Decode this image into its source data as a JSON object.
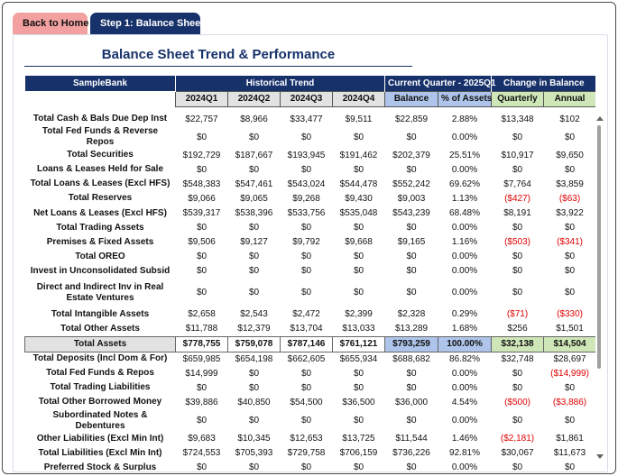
{
  "tabs": {
    "home": "Back to Home",
    "step1": "Step 1: Balance Sheet"
  },
  "title": "Balance Sheet Trend & Performance",
  "header": {
    "bank": "SampleBank",
    "historical": "Historical Trend",
    "current": "Current Quarter - 2025Q1",
    "change": "Change in Balance",
    "sub": [
      "2024Q1",
      "2024Q2",
      "2024Q3",
      "2024Q4",
      "Balance",
      "% of Assets",
      "Quarterly",
      "Annual"
    ]
  },
  "rows": [
    {
      "label": "Total Cash & Bals Due Dep Inst",
      "v": [
        "$22,757",
        "$8,966",
        "$33,477",
        "$9,511",
        "$22,859",
        "2.88%",
        "$13,348",
        "$102"
      ]
    },
    {
      "label": "Total Fed Funds & Reverse Repos",
      "v": [
        "$0",
        "$0",
        "$0",
        "$0",
        "$0",
        "0.00%",
        "$0",
        "$0"
      ]
    },
    {
      "label": "Total Securities",
      "v": [
        "$192,729",
        "$187,667",
        "$193,945",
        "$191,462",
        "$202,379",
        "25.51%",
        "$10,917",
        "$9,650"
      ]
    },
    {
      "label": "Loans & Leases Held for Sale",
      "v": [
        "$0",
        "$0",
        "$0",
        "$0",
        "$0",
        "0.00%",
        "$0",
        "$0"
      ]
    },
    {
      "label": "Total Loans & Leases (Excl HFS)",
      "v": [
        "$548,383",
        "$547,461",
        "$543,024",
        "$544,478",
        "$552,242",
        "69.62%",
        "$7,764",
        "$3,859"
      ]
    },
    {
      "label": "Total Reserves",
      "v": [
        "$9,066",
        "$9,065",
        "$9,268",
        "$9,430",
        "$9,003",
        "1.13%",
        "($427)",
        "($63)"
      ]
    },
    {
      "label": "Net Loans & Leases (Excl HFS)",
      "v": [
        "$539,317",
        "$538,396",
        "$533,756",
        "$535,048",
        "$543,239",
        "68.48%",
        "$8,191",
        "$3,922"
      ]
    },
    {
      "label": "Total Trading Assets",
      "v": [
        "$0",
        "$0",
        "$0",
        "$0",
        "$0",
        "0.00%",
        "$0",
        "$0"
      ]
    },
    {
      "label": "Premises & Fixed Assets",
      "v": [
        "$9,506",
        "$9,127",
        "$9,792",
        "$9,668",
        "$9,165",
        "1.16%",
        "($503)",
        "($341)"
      ]
    },
    {
      "label": "Total OREO",
      "v": [
        "$0",
        "$0",
        "$0",
        "$0",
        "$0",
        "0.00%",
        "$0",
        "$0"
      ]
    },
    {
      "label": "Invest in Unconsolidated Subsid",
      "v": [
        "$0",
        "$0",
        "$0",
        "$0",
        "$0",
        "0.00%",
        "$0",
        "$0"
      ]
    },
    {
      "label": "Direct and Indirect Inv in Real Estate Ventures",
      "tall": true,
      "v": [
        "$0",
        "$0",
        "$0",
        "$0",
        "$0",
        "0.00%",
        "$0",
        "$0"
      ]
    },
    {
      "label": "Total Intangible Assets",
      "v": [
        "$2,658",
        "$2,543",
        "$2,472",
        "$2,399",
        "$2,328",
        "0.29%",
        "($71)",
        "($330)"
      ]
    },
    {
      "label": "Total Other Assets",
      "v": [
        "$11,788",
        "$12,379",
        "$13,704",
        "$13,033",
        "$13,289",
        "1.68%",
        "$256",
        "$1,501"
      ]
    },
    {
      "label": "Total Assets",
      "total": true,
      "v": [
        "$778,755",
        "$759,078",
        "$787,146",
        "$761,121",
        "$793,259",
        "100.00%",
        "$32,138",
        "$14,504"
      ]
    },
    {
      "label": "Total Deposits (Incl Dom & For)",
      "v": [
        "$659,985",
        "$654,198",
        "$662,605",
        "$655,934",
        "$688,682",
        "86.82%",
        "$32,748",
        "$28,697"
      ]
    },
    {
      "label": "Total Fed Funds & Repos",
      "v": [
        "$14,999",
        "$0",
        "$0",
        "$0",
        "$0",
        "0.00%",
        "$0",
        "($14,999)"
      ]
    },
    {
      "label": "Total Trading Liabilities",
      "v": [
        "$0",
        "$0",
        "$0",
        "$0",
        "$0",
        "0.00%",
        "$0",
        "$0"
      ]
    },
    {
      "label": "Total Other Borrowed Money",
      "v": [
        "$39,886",
        "$40,850",
        "$54,500",
        "$36,500",
        "$36,000",
        "4.54%",
        "($500)",
        "($3,886)"
      ]
    },
    {
      "label": "Subordinated Notes & Debentures",
      "v": [
        "$0",
        "$0",
        "$0",
        "$0",
        "$0",
        "0.00%",
        "$0",
        "$0"
      ]
    },
    {
      "label": "Other Liabilities (Excl Min Int)",
      "v": [
        "$9,683",
        "$10,345",
        "$12,653",
        "$13,725",
        "$11,544",
        "1.46%",
        "($2,181)",
        "$1,861"
      ]
    },
    {
      "label": "Total Liabilities (Excl Min Int)",
      "v": [
        "$724,553",
        "$705,393",
        "$729,758",
        "$706,159",
        "$736,226",
        "92.81%",
        "$30,067",
        "$11,673"
      ]
    },
    {
      "label": "Preferred Stock & Surplus",
      "v": [
        "$0",
        "$0",
        "$0",
        "$0",
        "$0",
        "0.00%",
        "$0",
        "$0"
      ]
    }
  ]
}
